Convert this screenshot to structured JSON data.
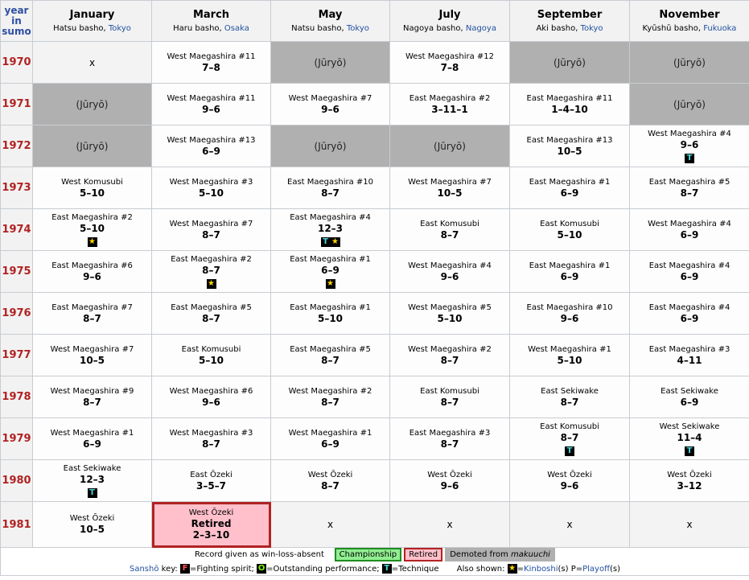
{
  "corner": [
    "year",
    "in",
    "sumo"
  ],
  "months": [
    {
      "name": "January",
      "basho": "Hatsu basho, ",
      "venue": "Tokyo"
    },
    {
      "name": "March",
      "basho": "Haru basho, ",
      "venue": "Osaka"
    },
    {
      "name": "May",
      "basho": "Natsu basho, ",
      "venue": "Tokyo"
    },
    {
      "name": "July",
      "basho": "Nagoya basho, ",
      "venue": "Nagoya"
    },
    {
      "name": "September",
      "basho": "Aki basho, ",
      "venue": "Tokyo"
    },
    {
      "name": "November",
      "basho": "Kyūshū basho, ",
      "venue": "Fukuoka"
    }
  ],
  "rows": [
    {
      "year": "1970",
      "cells": [
        {
          "type": "blank",
          "text": "x"
        },
        {
          "type": "rec",
          "rank": "West Maegashira #11",
          "score": "7–8"
        },
        {
          "type": "gray",
          "text": "(Jūryō)"
        },
        {
          "type": "rec",
          "rank": "West Maegashira #12",
          "score": "7–8"
        },
        {
          "type": "gray",
          "text": "(Jūryō)"
        },
        {
          "type": "gray",
          "text": "(Jūryō)"
        }
      ]
    },
    {
      "year": "1971",
      "cells": [
        {
          "type": "gray",
          "text": "(Jūryō)"
        },
        {
          "type": "rec",
          "rank": "West Maegashira #11",
          "score": "9–6"
        },
        {
          "type": "rec",
          "rank": "West Maegashira #7",
          "score": "9–6"
        },
        {
          "type": "rec",
          "rank": "East Maegashira #2",
          "score": "3–11–1"
        },
        {
          "type": "rec",
          "rank": "East Maegashira #11",
          "score": "1–4–10"
        },
        {
          "type": "gray",
          "text": "(Jūryō)"
        }
      ]
    },
    {
      "year": "1972",
      "cells": [
        {
          "type": "gray",
          "text": "(Jūryō)"
        },
        {
          "type": "rec",
          "rank": "West Maegashira #13",
          "score": "6–9"
        },
        {
          "type": "gray",
          "text": "(Jūryō)"
        },
        {
          "type": "gray",
          "text": "(Jūryō)"
        },
        {
          "type": "rec",
          "rank": "East Maegashira #13",
          "score": "10–5"
        },
        {
          "type": "rec",
          "rank": "West Maegashira #4",
          "score": "9–6",
          "badges": "T"
        }
      ]
    },
    {
      "year": "1973",
      "cells": [
        {
          "type": "rec",
          "rank": "West Komusubi",
          "score": "5–10"
        },
        {
          "type": "rec",
          "rank": "West Maegashira #3",
          "score": "5–10"
        },
        {
          "type": "rec",
          "rank": "East Maegashira #10",
          "score": "8–7"
        },
        {
          "type": "rec",
          "rank": "West Maegashira #7",
          "score": "10–5"
        },
        {
          "type": "rec",
          "rank": "East Maegashira #1",
          "score": "6–9"
        },
        {
          "type": "rec",
          "rank": "East Maegashira #5",
          "score": "8–7"
        }
      ]
    },
    {
      "year": "1974",
      "cells": [
        {
          "type": "rec",
          "rank": "East Maegashira #2",
          "score": "5–10",
          "badges": "★"
        },
        {
          "type": "rec",
          "rank": "West Maegashira #7",
          "score": "8–7"
        },
        {
          "type": "rec",
          "rank": "East Maegashira #4",
          "score": "12–3",
          "badges": "T★"
        },
        {
          "type": "rec",
          "rank": "East Komusubi",
          "score": "8–7"
        },
        {
          "type": "rec",
          "rank": "East Komusubi",
          "score": "5–10"
        },
        {
          "type": "rec",
          "rank": "West Maegashira #4",
          "score": "6–9"
        }
      ]
    },
    {
      "year": "1975",
      "cells": [
        {
          "type": "rec",
          "rank": "East Maegashira #6",
          "score": "9–6"
        },
        {
          "type": "rec",
          "rank": "East Maegashira #2",
          "score": "8–7",
          "badges": "★"
        },
        {
          "type": "rec",
          "rank": "East Maegashira #1",
          "score": "6–9",
          "badges": "★"
        },
        {
          "type": "rec",
          "rank": "West Maegashira #4",
          "score": "9–6"
        },
        {
          "type": "rec",
          "rank": "East Maegashira #1",
          "score": "6–9"
        },
        {
          "type": "rec",
          "rank": "East Maegashira #4",
          "score": "6–9"
        }
      ]
    },
    {
      "year": "1976",
      "cells": [
        {
          "type": "rec",
          "rank": "East Maegashira #7",
          "score": "8–7"
        },
        {
          "type": "rec",
          "rank": "East Maegashira #5",
          "score": "8–7"
        },
        {
          "type": "rec",
          "rank": "East Maegashira #1",
          "score": "5–10"
        },
        {
          "type": "rec",
          "rank": "West Maegashira #5",
          "score": "5–10"
        },
        {
          "type": "rec",
          "rank": "East Maegashira #10",
          "score": "9–6"
        },
        {
          "type": "rec",
          "rank": "East Maegashira #4",
          "score": "6–9"
        }
      ]
    },
    {
      "year": "1977",
      "cells": [
        {
          "type": "rec",
          "rank": "West Maegashira #7",
          "score": "10–5"
        },
        {
          "type": "rec",
          "rank": "East Komusubi",
          "score": "5–10"
        },
        {
          "type": "rec",
          "rank": "East Maegashira #5",
          "score": "8–7"
        },
        {
          "type": "rec",
          "rank": "West Maegashira #2",
          "score": "8–7"
        },
        {
          "type": "rec",
          "rank": "West Maegashira #1",
          "score": "5–10"
        },
        {
          "type": "rec",
          "rank": "East Maegashira #3",
          "score": "4–11"
        }
      ]
    },
    {
      "year": "1978",
      "cells": [
        {
          "type": "rec",
          "rank": "West Maegashira #9",
          "score": "8–7"
        },
        {
          "type": "rec",
          "rank": "West Maegashira #6",
          "score": "9–6"
        },
        {
          "type": "rec",
          "rank": "West Maegashira #2",
          "score": "8–7"
        },
        {
          "type": "rec",
          "rank": "East Komusubi",
          "score": "8–7"
        },
        {
          "type": "rec",
          "rank": "East Sekiwake",
          "score": "8–7"
        },
        {
          "type": "rec",
          "rank": "East Sekiwake",
          "score": "6–9"
        }
      ]
    },
    {
      "year": "1979",
      "cells": [
        {
          "type": "rec",
          "rank": "West Maegashira #1",
          "score": "6–9"
        },
        {
          "type": "rec",
          "rank": "West Maegashira #3",
          "score": "8–7"
        },
        {
          "type": "rec",
          "rank": "West Maegashira #1",
          "score": "6–9"
        },
        {
          "type": "rec",
          "rank": "East Maegashira #3",
          "score": "8–7"
        },
        {
          "type": "rec",
          "rank": "East Komusubi",
          "score": "8–7",
          "badges": "T"
        },
        {
          "type": "rec",
          "rank": "West Sekiwake",
          "score": "11–4",
          "badges": "T"
        }
      ]
    },
    {
      "year": "1980",
      "cells": [
        {
          "type": "rec",
          "rank": "East Sekiwake",
          "score": "12–3",
          "badges": "T"
        },
        {
          "type": "rec",
          "rank": "East Ōzeki",
          "score": "3–5–7"
        },
        {
          "type": "rec",
          "rank": "West Ōzeki",
          "score": "8–7"
        },
        {
          "type": "rec",
          "rank": "West Ōzeki",
          "score": "9–6"
        },
        {
          "type": "rec",
          "rank": "West Ōzeki",
          "score": "9–6"
        },
        {
          "type": "rec",
          "rank": "West Ōzeki",
          "score": "3–12"
        }
      ]
    },
    {
      "year": "1981",
      "cells": [
        {
          "type": "rec",
          "rank": "West Ōzeki",
          "score": "10–5"
        },
        {
          "type": "retired",
          "rank": "West Ōzeki",
          "label": "Retired",
          "score": "2–3–10"
        },
        {
          "type": "blank",
          "text": "x"
        },
        {
          "type": "blank",
          "text": "x"
        },
        {
          "type": "blank",
          "text": "x"
        },
        {
          "type": "blank",
          "text": "x"
        }
      ]
    }
  ],
  "legend": {
    "record_note": "Record given as win-loss-absent",
    "championship": "Championship",
    "retired": "Retired",
    "demoted_prefix": "Demoted from ",
    "demoted_em": "makuuchi",
    "sansho_link": "Sanshō",
    "sansho_key": " key: ",
    "f_glyph": "F",
    "f_text": "=Fighting spirit; ",
    "o_glyph": "O",
    "o_text": "=Outstanding performance; ",
    "t_glyph": "T",
    "t_text": "=Technique",
    "also_shown": "Also shown: ",
    "star_glyph": "★",
    "kinboshi_eq": "=",
    "kinboshi": "Kinboshi",
    "kinboshi_suffix": "(s) P=",
    "playoff": "Playoff",
    "playoff_suffix": "(s)"
  }
}
